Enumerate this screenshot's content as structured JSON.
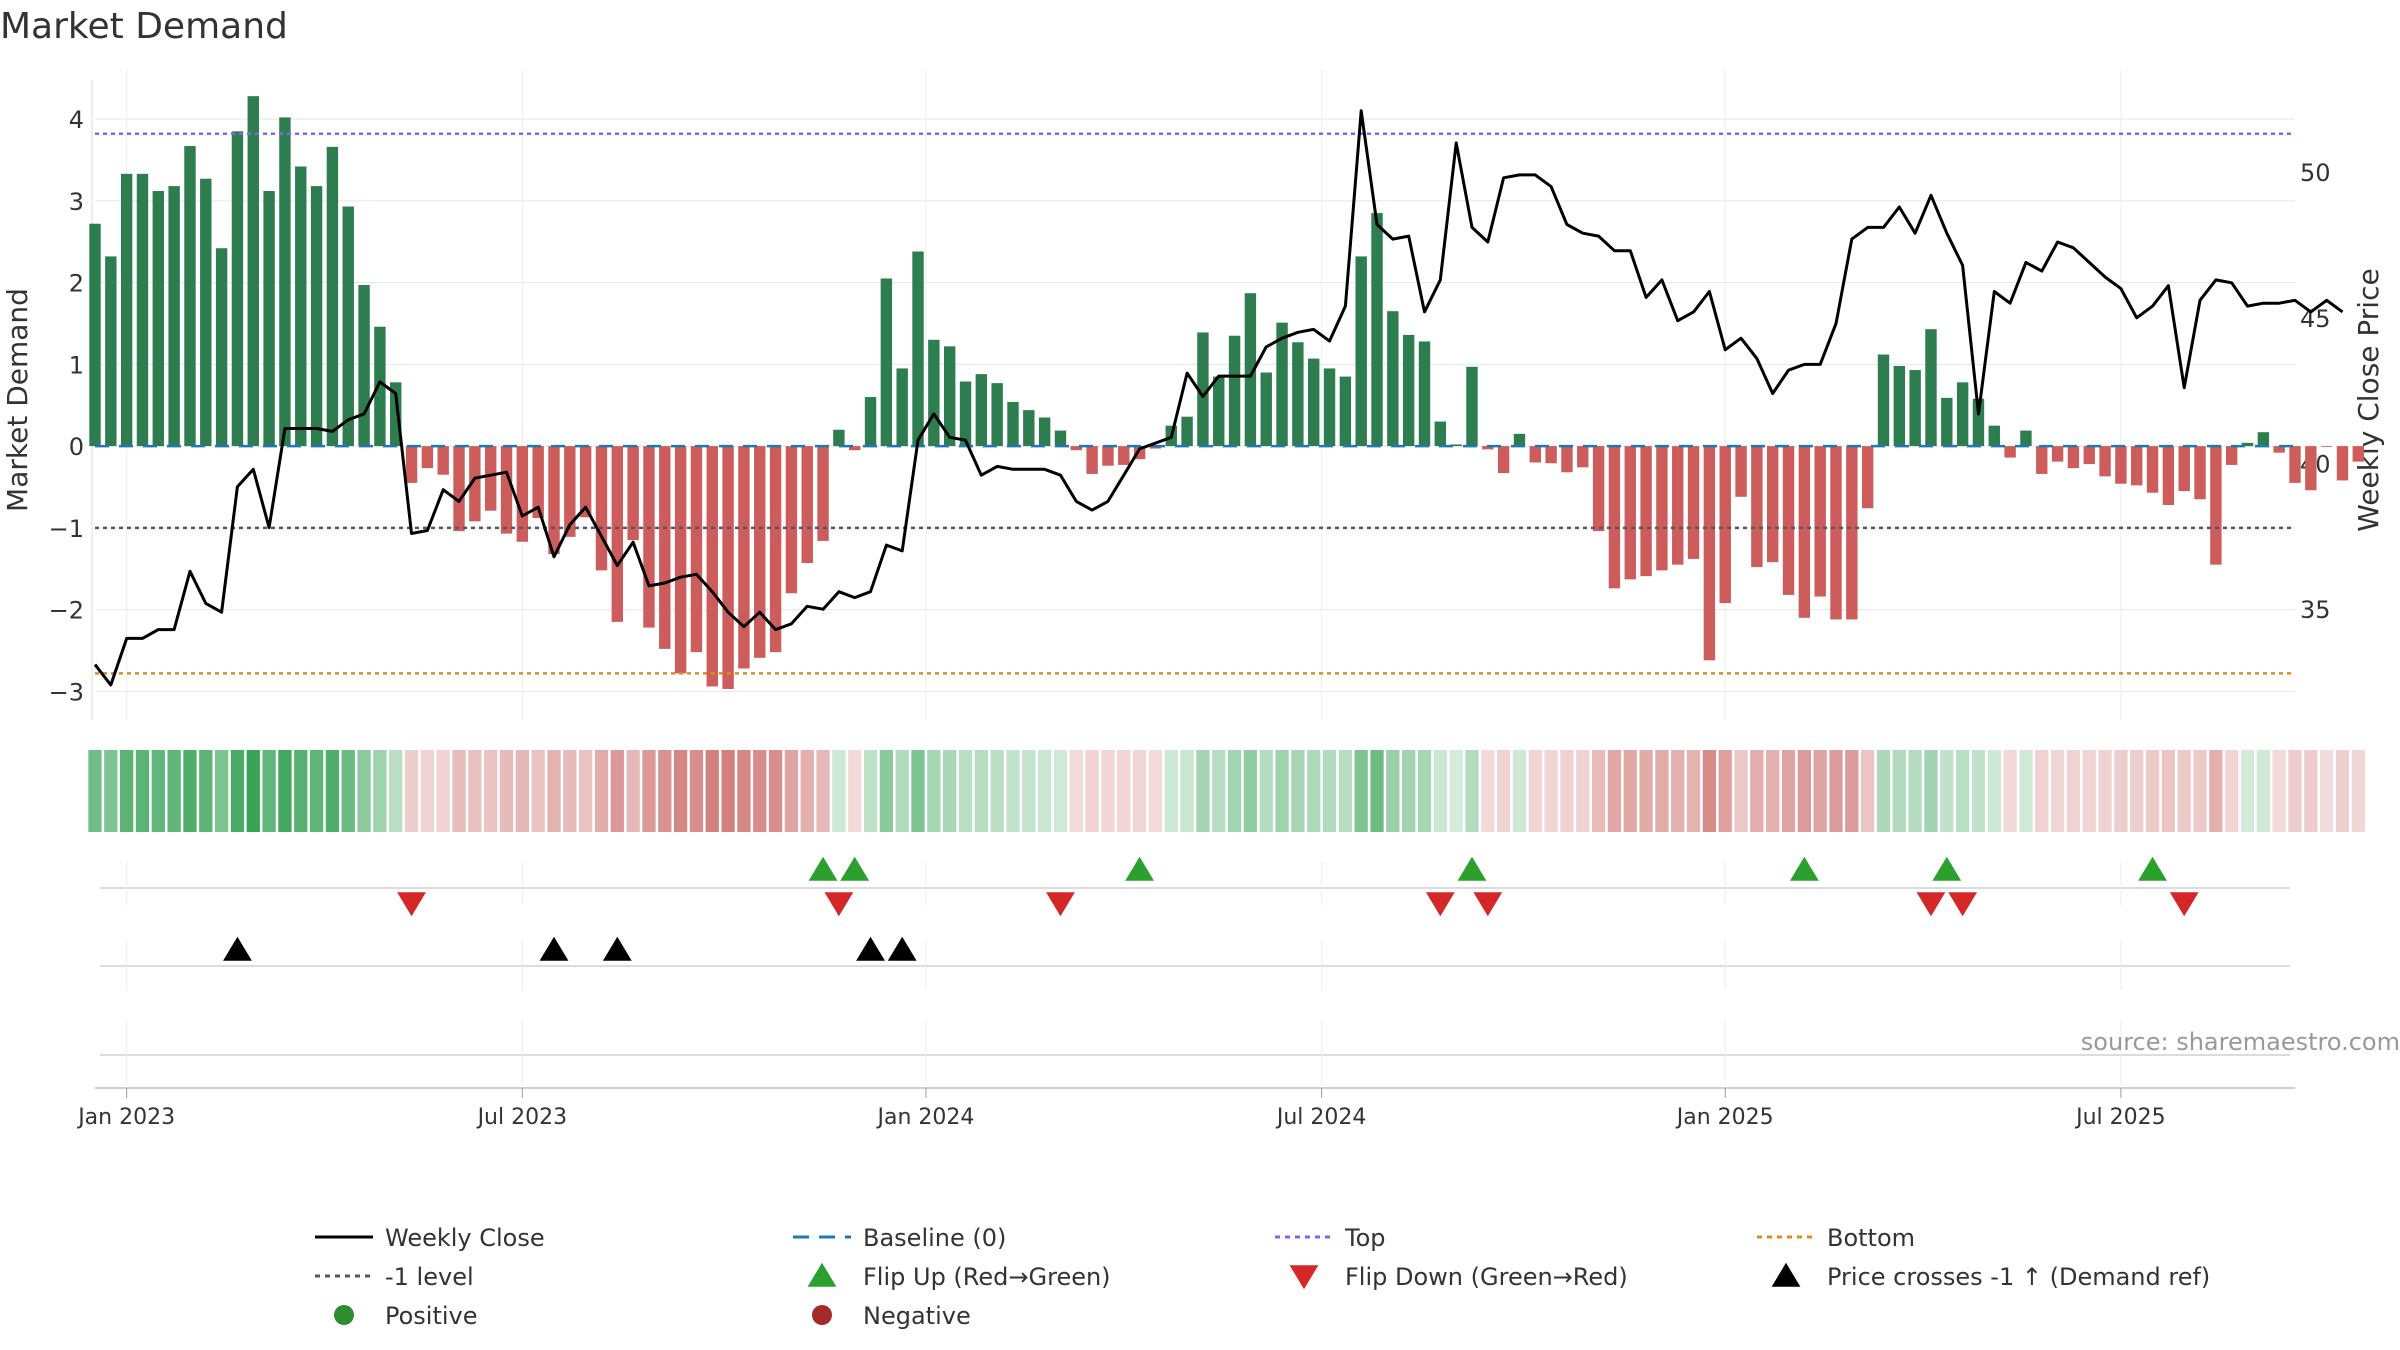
{
  "chart_data": {
    "type": "bar+line",
    "title": "Market Demand",
    "ylabel_left": "Market Demand",
    "ylabel_right": "Weekly Close Price",
    "ylim_left": [
      -3.35,
      4.6
    ],
    "ylim_right": [
      31.2,
      53.5
    ],
    "left_ticks": [
      4,
      3,
      2,
      1,
      0,
      -1,
      -2,
      -3
    ],
    "left_tick_labels": [
      "4",
      "3",
      "2",
      "1",
      "0",
      "−1",
      "−2",
      "−3"
    ],
    "right_ticks": [
      50,
      45,
      40,
      35
    ],
    "right_tick_labels": [
      "50",
      "45",
      "40",
      "35"
    ],
    "x_week_range": [
      0,
      139
    ],
    "x_ticks": [
      {
        "label": "Jan 2023",
        "week": 2
      },
      {
        "label": "Jul 2023",
        "week": 27
      },
      {
        "label": "Jan 2024",
        "week": 52.5
      },
      {
        "label": "Jul 2024",
        "week": 77.5
      },
      {
        "label": "Jan 2025",
        "week": 103
      },
      {
        "label": "Jul 2025",
        "week": 128
      }
    ],
    "reference_lines": {
      "top": 3.82,
      "minus_one": -1.0,
      "bottom": -2.78,
      "baseline": 0
    },
    "demand_values": [
      2.72,
      2.32,
      3.33,
      3.33,
      3.12,
      3.18,
      3.67,
      3.27,
      2.42,
      3.85,
      4.28,
      3.12,
      4.02,
      3.42,
      3.18,
      3.66,
      2.93,
      1.97,
      1.46,
      0.78,
      -0.45,
      -0.27,
      -0.35,
      -1.04,
      -0.92,
      -0.79,
      -1.07,
      -1.17,
      -0.88,
      -1.32,
      -1.11,
      -0.87,
      -1.52,
      -2.15,
      -1.15,
      -2.22,
      -2.48,
      -2.78,
      -2.52,
      -2.94,
      -2.97,
      -2.72,
      -2.59,
      -2.52,
      -1.8,
      -1.43,
      -1.16,
      0.2,
      -0.05,
      0.6,
      2.05,
      0.95,
      2.38,
      1.3,
      1.22,
      0.79,
      0.88,
      0.77,
      0.54,
      0.44,
      0.35,
      0.19,
      -0.05,
      -0.34,
      -0.24,
      -0.23,
      -0.16,
      -0.03,
      0.25,
      0.36,
      1.39,
      0.85,
      1.35,
      1.87,
      0.9,
      1.51,
      1.27,
      1.07,
      0.95,
      0.85,
      2.32,
      2.85,
      1.65,
      1.36,
      1.28,
      0.3,
      0.02,
      0.97,
      -0.04,
      -0.33,
      0.15,
      -0.2,
      -0.21,
      -0.32,
      -0.26,
      -1.04,
      -1.74,
      -1.63,
      -1.59,
      -1.52,
      -1.45,
      -1.38,
      -2.62,
      -1.92,
      -0.62,
      -1.48,
      -1.42,
      -1.82,
      -2.1,
      -1.84,
      -2.12,
      -2.12,
      -0.76,
      1.12,
      0.98,
      0.93,
      1.43,
      0.59,
      0.78,
      0.58,
      0.25,
      -0.14,
      0.19,
      -0.34,
      -0.19,
      -0.27,
      -0.22,
      -0.37,
      -0.46,
      -0.48,
      -0.57,
      -0.72,
      -0.55,
      -0.65,
      -1.45,
      -0.23,
      0.04,
      0.17,
      -0.08,
      -0.45,
      -0.54,
      -0.01,
      -0.42,
      -0.19
    ],
    "close_values": [
      33.1,
      32.4,
      34.0,
      34.0,
      34.3,
      34.3,
      36.3,
      35.2,
      34.9,
      39.2,
      39.8,
      37.8,
      41.2,
      41.2,
      41.2,
      41.1,
      41.5,
      41.7,
      42.8,
      42.4,
      37.6,
      37.7,
      39.1,
      38.7,
      39.5,
      39.6,
      39.7,
      38.2,
      38.5,
      36.8,
      37.9,
      38.5,
      37.5,
      36.5,
      37.3,
      35.8,
      35.9,
      36.1,
      36.2,
      35.6,
      34.9,
      34.4,
      34.9,
      34.3,
      34.5,
      35.1,
      35.0,
      35.6,
      35.4,
      35.6,
      37.2,
      37.0,
      40.8,
      41.7,
      40.9,
      40.8,
      39.6,
      39.9,
      39.8,
      39.8,
      39.8,
      39.6,
      38.7,
      38.4,
      38.7,
      39.6,
      40.5,
      40.7,
      40.9,
      43.1,
      42.3,
      43.0,
      43.0,
      43.0,
      44.0,
      44.3,
      44.5,
      44.6,
      44.2,
      45.4,
      52.1,
      48.2,
      47.7,
      47.8,
      45.2,
      46.3,
      51.0,
      48.1,
      47.6,
      49.8,
      49.9,
      49.9,
      49.5,
      48.2,
      47.9,
      47.8,
      47.3,
      47.3,
      45.7,
      46.3,
      44.9,
      45.2,
      45.9,
      43.9,
      44.3,
      43.6,
      42.4,
      43.2,
      43.4,
      43.4,
      44.8,
      47.7,
      48.1,
      48.1,
      48.8,
      47.9,
      49.2,
      47.9,
      46.8,
      41.7,
      45.9,
      45.5,
      46.9,
      46.6,
      47.6,
      47.4,
      46.9,
      46.4,
      46.0,
      45.0,
      45.4,
      46.1,
      42.6,
      45.6,
      46.3,
      46.2,
      45.4,
      45.5,
      45.5,
      45.6,
      45.2,
      45.6,
      45.2
    ],
    "flip_up_weeks": [
      46,
      48,
      66,
      87,
      108,
      117,
      130
    ],
    "flip_down_weeks": [
      20,
      47,
      61,
      85,
      88,
      116,
      118,
      132
    ],
    "price_cross_weeks": [
      9,
      29,
      33,
      49,
      51
    ],
    "colors": {
      "positive_bar": "#2e7d4f",
      "negative_bar": "#cd5c5c",
      "close_line": "#000000",
      "baseline": "#1f77b4",
      "top_line": "#7b68ee",
      "minus_one_line": "#555566",
      "bottom_line": "#e08a1e",
      "flip_up": "#2ca02c",
      "flip_down": "#d62728",
      "cross_marker": "#000000",
      "heat_positive": "#2e9e4f",
      "heat_negative": "#c0504d",
      "positive_dot": "#2e8b2e",
      "negative_dot": "#a52a2a"
    },
    "source": "source: sharemaestro.com",
    "legend": [
      {
        "label": "Weekly Close",
        "symbol": "solid-line",
        "color": "#000000"
      },
      {
        "label": "Baseline (0)",
        "symbol": "dashed-line",
        "color": "#1f77b4"
      },
      {
        "label": "Top",
        "symbol": "dotted-line",
        "color": "#7b68ee"
      },
      {
        "label": "Bottom",
        "symbol": "dotted-line",
        "color": "#e08a1e"
      },
      {
        "label": "-1 level",
        "symbol": "dotted-line",
        "color": "#555566"
      },
      {
        "label": "Flip Up (Red→Green)",
        "symbol": "triangle-up",
        "color": "#2ca02c"
      },
      {
        "label": "Flip Down (Green→Red)",
        "symbol": "triangle-down",
        "color": "#d62728"
      },
      {
        "label": "Price crosses -1 ↑ (Demand ref)",
        "symbol": "triangle-up",
        "color": "#000000"
      },
      {
        "label": "Positive",
        "symbol": "dot",
        "color": "#2e8b2e"
      },
      {
        "label": "Negative",
        "symbol": "dot",
        "color": "#a52a2a"
      }
    ]
  }
}
